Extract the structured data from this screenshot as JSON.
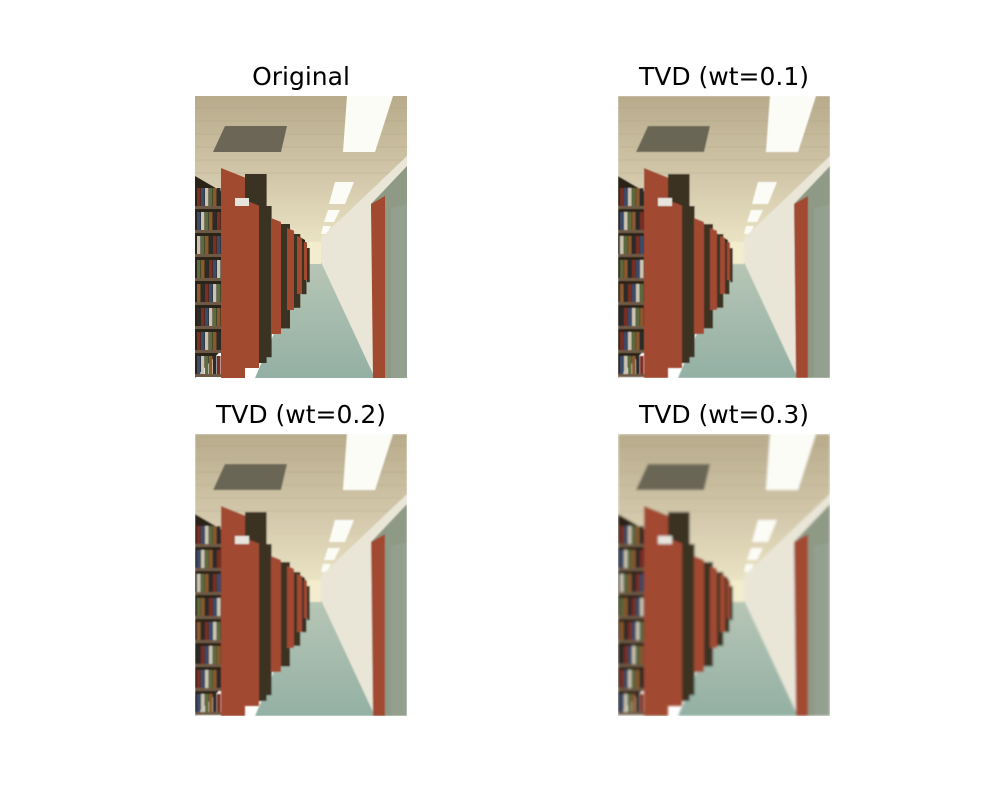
{
  "figure": {
    "panels": [
      {
        "title": "Original",
        "blur": 0
      },
      {
        "title": "TVD (wt=0.1)",
        "blur": 0.5
      },
      {
        "title": "TVD (wt=0.2)",
        "blur": 0.9
      },
      {
        "title": "TVD (wt=0.3)",
        "blur": 1.3
      }
    ],
    "colors": {
      "ceiling": "#d8cdb0",
      "ceiling_dark": "#6b6656",
      "light_fixture": "#fcfcf6",
      "floor": "#93b0a4",
      "shelf_wood": "#a24a30",
      "shelf_dark": "#2a2418",
      "wall": "#e9e6d8",
      "wall_right": "#8e9a86"
    }
  }
}
